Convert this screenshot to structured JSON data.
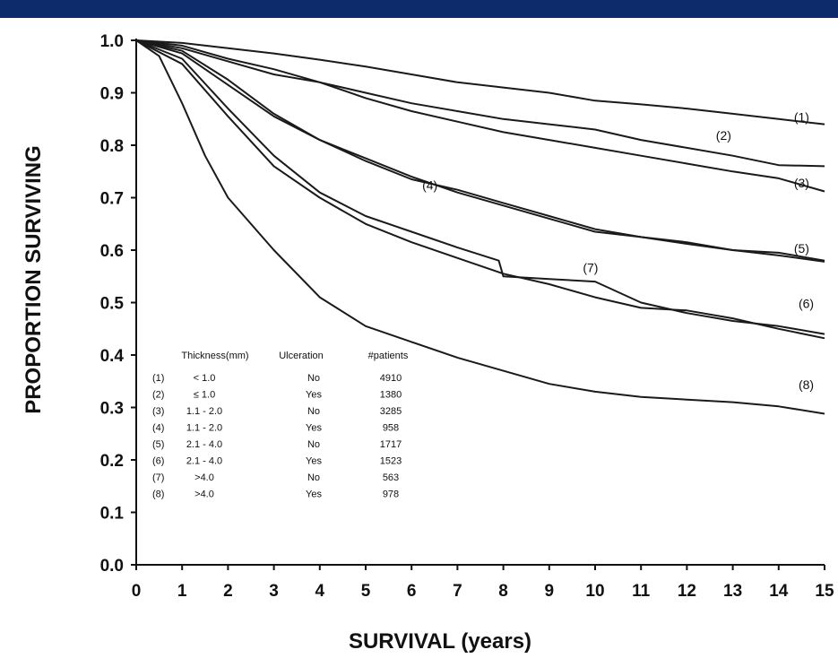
{
  "header_bar": {
    "color": "#0d2a6b"
  },
  "chart_data": {
    "type": "line",
    "xlabel": "SURVIVAL (years)",
    "ylabel": "PROPORTION SURVIVING",
    "xlim": [
      0,
      15
    ],
    "ylim": [
      0,
      1.0
    ],
    "x_ticks": [
      "0",
      "1",
      "2",
      "3",
      "4",
      "5",
      "6",
      "7",
      "8",
      "9",
      "10",
      "11",
      "12",
      "13",
      "14",
      "15"
    ],
    "y_ticks": [
      "0.0",
      "0.1",
      "0.2",
      "0.3",
      "0.4",
      "0.5",
      "0.6",
      "0.7",
      "0.8",
      "0.9",
      "1.0"
    ],
    "grid": false,
    "series": [
      {
        "name": "(1)",
        "points": [
          [
            0,
            1.0
          ],
          [
            1,
            0.995
          ],
          [
            2,
            0.985
          ],
          [
            3,
            0.975
          ],
          [
            4,
            0.963
          ],
          [
            5,
            0.95
          ],
          [
            6,
            0.935
          ],
          [
            7,
            0.92
          ],
          [
            8,
            0.91
          ],
          [
            9,
            0.9
          ],
          [
            10,
            0.885
          ],
          [
            11,
            0.878
          ],
          [
            12,
            0.87
          ],
          [
            13,
            0.86
          ],
          [
            14,
            0.85
          ],
          [
            15,
            0.84
          ]
        ]
      },
      {
        "name": "(2)",
        "points": [
          [
            0,
            1.0
          ],
          [
            1,
            0.985
          ],
          [
            2,
            0.96
          ],
          [
            3,
            0.935
          ],
          [
            4,
            0.92
          ],
          [
            5,
            0.9
          ],
          [
            6,
            0.88
          ],
          [
            7,
            0.865
          ],
          [
            8,
            0.85
          ],
          [
            9,
            0.84
          ],
          [
            10,
            0.83
          ],
          [
            11,
            0.81
          ],
          [
            12,
            0.795
          ],
          [
            13,
            0.78
          ],
          [
            14,
            0.762
          ],
          [
            15,
            0.76
          ]
        ]
      },
      {
        "name": "(3)",
        "points": [
          [
            0,
            1.0
          ],
          [
            1,
            0.99
          ],
          [
            2,
            0.965
          ],
          [
            3,
            0.945
          ],
          [
            4,
            0.92
          ],
          [
            5,
            0.89
          ],
          [
            6,
            0.865
          ],
          [
            7,
            0.845
          ],
          [
            8,
            0.825
          ],
          [
            9,
            0.81
          ],
          [
            10,
            0.795
          ],
          [
            11,
            0.78
          ],
          [
            12,
            0.765
          ],
          [
            13,
            0.75
          ],
          [
            14,
            0.737
          ],
          [
            15,
            0.712
          ]
        ]
      },
      {
        "name": "(4)",
        "points": [
          [
            0,
            1.0
          ],
          [
            1,
            0.975
          ],
          [
            2,
            0.915
          ],
          [
            3,
            0.855
          ],
          [
            4,
            0.81
          ],
          [
            5,
            0.77
          ],
          [
            6,
            0.735
          ],
          [
            7,
            0.715
          ],
          [
            8,
            0.69
          ],
          [
            9,
            0.665
          ],
          [
            10,
            0.64
          ],
          [
            11,
            0.625
          ],
          [
            12,
            0.612
          ],
          [
            13,
            0.6
          ],
          [
            14,
            0.595
          ],
          [
            15,
            0.58
          ]
        ]
      },
      {
        "name": "(5)",
        "points": [
          [
            0,
            1.0
          ],
          [
            1,
            0.98
          ],
          [
            2,
            0.925
          ],
          [
            3,
            0.86
          ],
          [
            4,
            0.81
          ],
          [
            5,
            0.775
          ],
          [
            6,
            0.74
          ],
          [
            7,
            0.71
          ],
          [
            8,
            0.685
          ],
          [
            9,
            0.66
          ],
          [
            10,
            0.635
          ],
          [
            11,
            0.625
          ],
          [
            12,
            0.615
          ],
          [
            13,
            0.6
          ],
          [
            14,
            0.59
          ],
          [
            15,
            0.578
          ]
        ]
      },
      {
        "name": "(6)",
        "points": [
          [
            0,
            1.0
          ],
          [
            1,
            0.955
          ],
          [
            2,
            0.855
          ],
          [
            3,
            0.76
          ],
          [
            4,
            0.7
          ],
          [
            5,
            0.65
          ],
          [
            6,
            0.615
          ],
          [
            7,
            0.585
          ],
          [
            8,
            0.555
          ],
          [
            9,
            0.535
          ],
          [
            10,
            0.51
          ],
          [
            11,
            0.49
          ],
          [
            12,
            0.485
          ],
          [
            13,
            0.47
          ],
          [
            14,
            0.45
          ],
          [
            15,
            0.432
          ]
        ]
      },
      {
        "name": "(7)",
        "points": [
          [
            0,
            1.0
          ],
          [
            1,
            0.965
          ],
          [
            2,
            0.87
          ],
          [
            3,
            0.78
          ],
          [
            4,
            0.71
          ],
          [
            5,
            0.665
          ],
          [
            6,
            0.635
          ],
          [
            7,
            0.605
          ],
          [
            7.9,
            0.58
          ],
          [
            8,
            0.55
          ],
          [
            9,
            0.545
          ],
          [
            10,
            0.54
          ],
          [
            11,
            0.5
          ],
          [
            12,
            0.48
          ],
          [
            13,
            0.465
          ],
          [
            14,
            0.455
          ],
          [
            15,
            0.44
          ]
        ]
      },
      {
        "name": "(8)",
        "points": [
          [
            0,
            1.0
          ],
          [
            0.5,
            0.97
          ],
          [
            1,
            0.88
          ],
          [
            1.5,
            0.78
          ],
          [
            2,
            0.7
          ],
          [
            3,
            0.6
          ],
          [
            4,
            0.51
          ],
          [
            5,
            0.455
          ],
          [
            6,
            0.425
          ],
          [
            7,
            0.395
          ],
          [
            8,
            0.37
          ],
          [
            9,
            0.345
          ],
          [
            10,
            0.33
          ],
          [
            11,
            0.32
          ],
          [
            12,
            0.315
          ],
          [
            13,
            0.31
          ],
          [
            14,
            0.302
          ],
          [
            15,
            0.288
          ]
        ]
      }
    ],
    "curve_labels": [
      {
        "text": "(1)",
        "x": 14.5,
        "y": 0.845
      },
      {
        "text": "(2)",
        "x": 12.8,
        "y": 0.81
      },
      {
        "text": "(3)",
        "x": 14.5,
        "y": 0.72
      },
      {
        "text": "(4)",
        "x": 6.4,
        "y": 0.715
      },
      {
        "text": "(5)",
        "x": 14.5,
        "y": 0.595
      },
      {
        "text": "(6)",
        "x": 14.6,
        "y": 0.49
      },
      {
        "text": "(7)",
        "x": 9.9,
        "y": 0.558
      },
      {
        "text": "(8)",
        "x": 14.6,
        "y": 0.335
      }
    ],
    "legend": {
      "columns": [
        "Thickness(mm)",
        "Ulceration",
        "#patients"
      ],
      "rows": [
        [
          "(1)",
          "< 1.0",
          "No",
          "4910"
        ],
        [
          "(2)",
          "≤ 1.0",
          "Yes",
          "1380"
        ],
        [
          "(3)",
          "1.1 - 2.0",
          "No",
          "3285"
        ],
        [
          "(4)",
          "1.1 - 2.0",
          "Yes",
          "958"
        ],
        [
          "(5)",
          "2.1 - 4.0",
          "No",
          "1717"
        ],
        [
          "(6)",
          "2.1 - 4.0",
          "Yes",
          "1523"
        ],
        [
          "(7)",
          ">4.0",
          "No",
          "563"
        ],
        [
          "(8)",
          ">4.0",
          "Yes",
          "978"
        ]
      ]
    }
  }
}
